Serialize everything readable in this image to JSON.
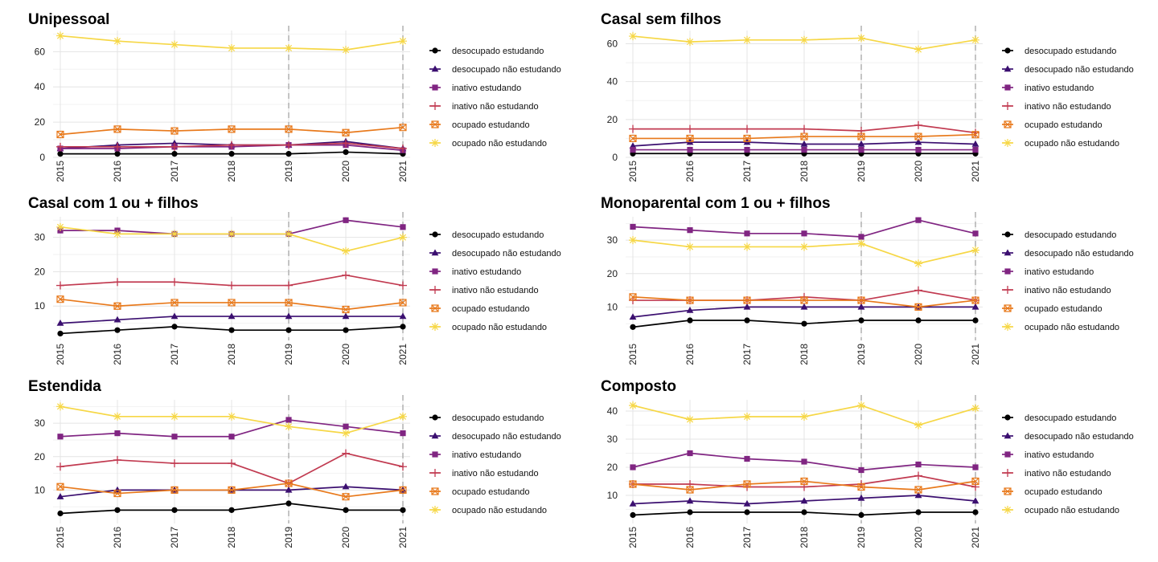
{
  "chart_data": {
    "type": "line",
    "x": [
      "2015",
      "2016",
      "2017",
      "2018",
      "2019",
      "2020",
      "2021"
    ],
    "vlines": [
      "2019",
      "2021"
    ],
    "series_styles": [
      {
        "name": "desocupado estudando",
        "color": "#000000",
        "marker": "circle"
      },
      {
        "name": "desocupado não estudando",
        "color": "#3b0f70",
        "marker": "triangle"
      },
      {
        "name": "inativo estudando",
        "color": "#802582",
        "marker": "square"
      },
      {
        "name": "inativo não estudando",
        "color": "#c13a50",
        "marker": "plus"
      },
      {
        "name": "ocupado estudando",
        "color": "#e8791b",
        "marker": "boxx"
      },
      {
        "name": "ocupado não estudando",
        "color": "#f6d746",
        "marker": "star"
      }
    ],
    "panels": [
      {
        "title": "Unipessoal",
        "ylim": [
          0,
          72
        ],
        "yticks": [
          0,
          20,
          40,
          60
        ],
        "series": [
          {
            "name": "desocupado estudando",
            "values": [
              2,
              2,
              2,
              2,
              2,
              3,
              2
            ]
          },
          {
            "name": "desocupado não estudando",
            "values": [
              5,
              7,
              8,
              7,
              7,
              9,
              5
            ]
          },
          {
            "name": "inativo estudando",
            "values": [
              5,
              5,
              6,
              6,
              7,
              7,
              4
            ]
          },
          {
            "name": "inativo não estudando",
            "values": [
              6,
              6,
              6,
              7,
              7,
              8,
              5
            ]
          },
          {
            "name": "ocupado estudando",
            "values": [
              13,
              16,
              15,
              16,
              16,
              14,
              17
            ]
          },
          {
            "name": "ocupado não estudando",
            "values": [
              69,
              66,
              64,
              62,
              62,
              61,
              66
            ]
          }
        ]
      },
      {
        "title": "Casal sem filhos",
        "ylim": [
          0,
          67
        ],
        "yticks": [
          0,
          20,
          40,
          60
        ],
        "series": [
          {
            "name": "desocupado estudando",
            "values": [
              2,
              2,
              2,
              2,
              2,
              2,
              2
            ]
          },
          {
            "name": "desocupado não estudando",
            "values": [
              6,
              8,
              8,
              7,
              7,
              8,
              7
            ]
          },
          {
            "name": "inativo estudando",
            "values": [
              4,
              4,
              4,
              4,
              4,
              4,
              4
            ]
          },
          {
            "name": "inativo não estudando",
            "values": [
              15,
              15,
              15,
              15,
              14,
              17,
              13
            ]
          },
          {
            "name": "ocupado estudando",
            "values": [
              10,
              10,
              10,
              11,
              11,
              11,
              12
            ]
          },
          {
            "name": "ocupado não estudando",
            "values": [
              64,
              61,
              62,
              62,
              63,
              57,
              62
            ]
          }
        ]
      },
      {
        "title": "Casal com 1 ou + filhos",
        "ylim": [
          0,
          36
        ],
        "yticks": [
          10,
          20,
          30
        ],
        "series": [
          {
            "name": "desocupado estudando",
            "values": [
              2,
              3,
              4,
              3,
              3,
              3,
              4
            ]
          },
          {
            "name": "desocupado não estudando",
            "values": [
              5,
              6,
              7,
              7,
              7,
              7,
              7
            ]
          },
          {
            "name": "inativo estudando",
            "values": [
              32,
              32,
              31,
              31,
              31,
              35,
              33
            ]
          },
          {
            "name": "inativo não estudando",
            "values": [
              16,
              17,
              17,
              16,
              16,
              19,
              16
            ]
          },
          {
            "name": "ocupado estudando",
            "values": [
              12,
              10,
              11,
              11,
              11,
              9,
              11
            ]
          },
          {
            "name": "ocupado não estudando",
            "values": [
              33,
              31,
              31,
              31,
              31,
              26,
              30
            ]
          }
        ]
      },
      {
        "title": "Monoparental com 1 ou + filhos",
        "ylim": [
          0,
          37
        ],
        "yticks": [
          10,
          20,
          30
        ],
        "series": [
          {
            "name": "desocupado estudando",
            "values": [
              4,
              6,
              6,
              5,
              6,
              6,
              6
            ]
          },
          {
            "name": "desocupado não estudando",
            "values": [
              7,
              9,
              10,
              10,
              10,
              10,
              10
            ]
          },
          {
            "name": "inativo estudando",
            "values": [
              34,
              33,
              32,
              32,
              31,
              36,
              32
            ]
          },
          {
            "name": "inativo não estudando",
            "values": [
              12,
              12,
              12,
              13,
              12,
              15,
              12
            ]
          },
          {
            "name": "ocupado estudando",
            "values": [
              13,
              12,
              12,
              12,
              12,
              10,
              12
            ]
          },
          {
            "name": "ocupado não estudando",
            "values": [
              30,
              28,
              28,
              28,
              29,
              23,
              27
            ]
          }
        ]
      },
      {
        "title": "Estendida",
        "ylim": [
          0,
          37
        ],
        "yticks": [
          10,
          20,
          30
        ],
        "series": [
          {
            "name": "desocupado estudando",
            "values": [
              3,
              4,
              4,
              4,
              6,
              4,
              4
            ]
          },
          {
            "name": "desocupado não estudando",
            "values": [
              8,
              10,
              10,
              10,
              10,
              11,
              10
            ]
          },
          {
            "name": "inativo estudando",
            "values": [
              26,
              27,
              26,
              26,
              31,
              29,
              27
            ]
          },
          {
            "name": "inativo não estudando",
            "values": [
              17,
              19,
              18,
              18,
              12,
              21,
              17
            ]
          },
          {
            "name": "ocupado estudando",
            "values": [
              11,
              9,
              10,
              10,
              12,
              8,
              10
            ]
          },
          {
            "name": "ocupado não estudando",
            "values": [
              35,
              32,
              32,
              32,
              29,
              27,
              32
            ]
          }
        ]
      },
      {
        "title": "Composto",
        "ylim": [
          0,
          44
        ],
        "yticks": [
          10,
          20,
          30,
          40
        ],
        "series": [
          {
            "name": "desocupado estudando",
            "values": [
              3,
              4,
              4,
              4,
              3,
              4,
              4
            ]
          },
          {
            "name": "desocupado não estudando",
            "values": [
              7,
              8,
              7,
              8,
              9,
              10,
              8
            ]
          },
          {
            "name": "inativo estudando",
            "values": [
              20,
              25,
              23,
              22,
              19,
              21,
              20
            ]
          },
          {
            "name": "inativo não estudando",
            "values": [
              14,
              14,
              13,
              13,
              14,
              17,
              13
            ]
          },
          {
            "name": "ocupado estudando",
            "values": [
              14,
              12,
              14,
              15,
              13,
              12,
              15
            ]
          },
          {
            "name": "ocupado não estudando",
            "values": [
              42,
              37,
              38,
              38,
              42,
              35,
              41
            ]
          }
        ]
      }
    ]
  }
}
